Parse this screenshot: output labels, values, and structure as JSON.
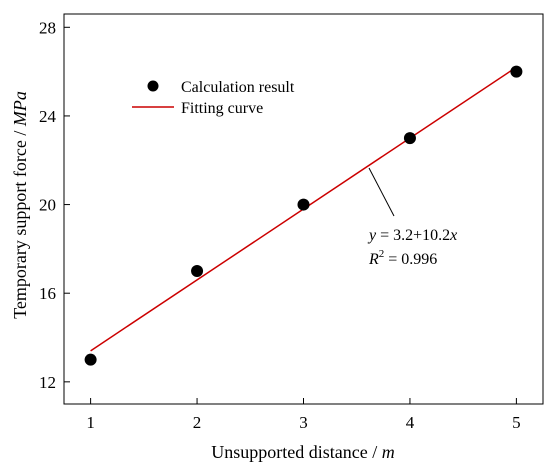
{
  "chart_data": {
    "type": "scatter",
    "title": "",
    "xlabel": "Unsupported distance / ",
    "xlabel_unit": "m",
    "ylabel": "Temporary support force / ",
    "ylabel_unit": "MPa",
    "xlim": [
      0.75,
      5.25
    ],
    "ylim": [
      11.0,
      28.6
    ],
    "xticks": [
      1,
      2,
      3,
      4,
      5
    ],
    "yticks": [
      12,
      16,
      20,
      24,
      28
    ],
    "grid": false,
    "legend_position": "top-left",
    "series": [
      {
        "name": "Calculation result",
        "kind": "scatter",
        "color": "#000000",
        "x": [
          1,
          2,
          3,
          4,
          5
        ],
        "y": [
          13,
          17,
          20,
          23,
          26
        ]
      },
      {
        "name": "Fitting curve",
        "kind": "line",
        "color": "#cc0000",
        "x": [
          1,
          5
        ],
        "y": [
          13.4,
          26.2
        ]
      }
    ],
    "fit_equation": {
      "y_var": "y",
      "equals": " = 3.2+10.2",
      "x_var": "x",
      "r2_label": "R",
      "r2_power": "2",
      "r2_equals": " = 0.996"
    }
  }
}
